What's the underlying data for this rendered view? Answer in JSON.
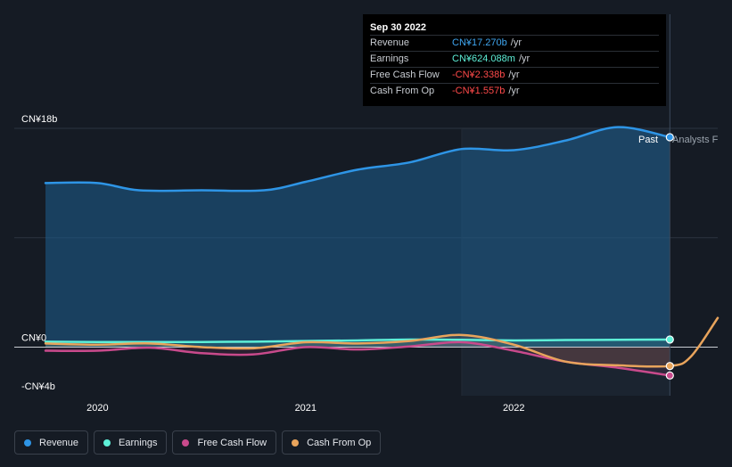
{
  "tooltip": {
    "date": "Sep 30 2022",
    "rows": [
      {
        "label": "Revenue",
        "value": "CN¥17.270b",
        "unit": "/yr",
        "color": "#3fa6f0"
      },
      {
        "label": "Earnings",
        "value": "CN¥624.088m",
        "unit": "/yr",
        "color": "#5ef0d8"
      },
      {
        "label": "Free Cash Flow",
        "value": "-CN¥2.338b",
        "unit": "/yr",
        "color": "#ff4a4a"
      },
      {
        "label": "Cash From Op",
        "value": "-CN¥1.557b",
        "unit": "/yr",
        "color": "#ff4a4a"
      }
    ]
  },
  "labels": {
    "past": "Past",
    "analysts": "Analysts F"
  },
  "legend": [
    {
      "label": "Revenue",
      "color": "#2e95e6"
    },
    {
      "label": "Earnings",
      "color": "#5ef0d8"
    },
    {
      "label": "Free Cash Flow",
      "color": "#c94a8c"
    },
    {
      "label": "Cash From Op",
      "color": "#e8a45c"
    }
  ],
  "chart_data": {
    "type": "area",
    "ylim": [
      -4,
      18
    ],
    "y_tick_labels": [
      {
        "value": 18,
        "label": "CN¥18b"
      },
      {
        "value": 0,
        "label": "CN¥0"
      },
      {
        "value": -4,
        "label": "-CN¥4b"
      }
    ],
    "x_tick_labels": [
      {
        "value": 2020,
        "label": "2020"
      },
      {
        "value": 2021,
        "label": "2021"
      },
      {
        "value": 2022,
        "label": "2022"
      }
    ],
    "xlim": [
      2019.6,
      2022.98
    ],
    "past_end": 2022.75,
    "highlight_start": 2021.75,
    "grid": true,
    "legend_position": "bottom-left",
    "series": [
      {
        "name": "Revenue",
        "color": "#2e95e6",
        "fill": true,
        "x": [
          2019.75,
          2020.0,
          2020.2,
          2020.5,
          2020.8,
          2021.0,
          2021.25,
          2021.5,
          2021.75,
          2022.0,
          2022.25,
          2022.5,
          2022.75
        ],
        "y": [
          13.5,
          13.5,
          12.9,
          12.9,
          12.9,
          13.6,
          14.6,
          15.2,
          16.3,
          16.2,
          17.0,
          18.1,
          17.27
        ]
      },
      {
        "name": "Earnings",
        "color": "#5ef0d8",
        "x": [
          2019.75,
          2020.0,
          2020.25,
          2020.5,
          2020.75,
          2021.0,
          2021.25,
          2021.5,
          2021.75,
          2022.0,
          2022.25,
          2022.5,
          2022.75
        ],
        "y": [
          0.45,
          0.42,
          0.42,
          0.42,
          0.45,
          0.5,
          0.55,
          0.62,
          0.6,
          0.55,
          0.58,
          0.6,
          0.624
        ]
      },
      {
        "name": "Free Cash Flow",
        "color": "#c94a8c",
        "x": [
          2019.75,
          2020.0,
          2020.25,
          2020.5,
          2020.75,
          2021.0,
          2021.25,
          2021.5,
          2021.75,
          2022.0,
          2022.25,
          2022.5,
          2022.75
        ],
        "y": [
          -0.3,
          -0.3,
          -0.05,
          -0.5,
          -0.6,
          0.0,
          -0.2,
          0.05,
          0.4,
          -0.3,
          -1.2,
          -1.7,
          -2.338
        ]
      },
      {
        "name": "Cash From Op",
        "color": "#e8a45c",
        "x": [
          2019.75,
          2020.0,
          2020.25,
          2020.5,
          2020.75,
          2021.0,
          2021.25,
          2021.5,
          2021.75,
          2022.0,
          2022.25,
          2022.5,
          2022.75,
          2022.85,
          2022.98
        ],
        "y": [
          0.3,
          0.2,
          0.3,
          0.0,
          -0.1,
          0.4,
          0.3,
          0.5,
          1.0,
          0.2,
          -1.2,
          -1.5,
          -1.557,
          -0.8,
          2.4
        ]
      }
    ]
  }
}
